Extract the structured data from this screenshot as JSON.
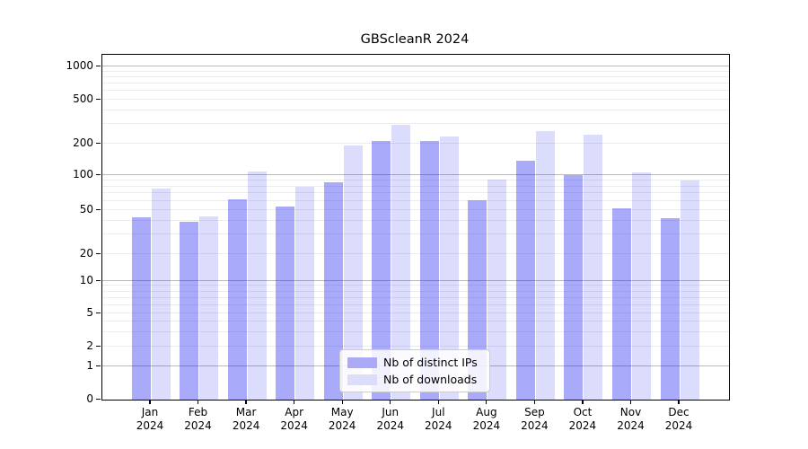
{
  "title": "GBScleanR 2024",
  "chart_data": {
    "type": "bar",
    "title": "GBScleanR 2024",
    "categories": [
      "Jan 2024",
      "Feb 2024",
      "Mar 2024",
      "Apr 2024",
      "May 2024",
      "Jun 2024",
      "Jul 2024",
      "Aug 2024",
      "Sep 2024",
      "Oct 2024",
      "Nov 2024",
      "Dec 2024"
    ],
    "x_tick_month_line": [
      "Jan",
      "Feb",
      "Mar",
      "Apr",
      "May",
      "Jun",
      "Jul",
      "Aug",
      "Sep",
      "Oct",
      "Nov",
      "Dec"
    ],
    "x_tick_year_line": "2024",
    "series": [
      {
        "name": "Nb of distinct IPs",
        "fill_rgba": "rgba(20,20,240,0.36)",
        "legend_hex": "#aaaaf9",
        "values": [
          43,
          39,
          62,
          54,
          87,
          212,
          213,
          61,
          138,
          100,
          52,
          42
        ]
      },
      {
        "name": "Nb of downloads",
        "fill_rgba": "rgba(20,20,240,0.15)",
        "legend_hex": "#dcdcfb",
        "values": [
          76,
          44,
          108,
          79,
          193,
          297,
          232,
          92,
          261,
          242,
          107,
          90
        ]
      }
    ],
    "yscale": "symlog",
    "y_ticks": [
      0,
      1,
      2,
      5,
      10,
      20,
      50,
      100,
      200,
      500,
      1000
    ],
    "ylim": [
      0,
      1280
    ],
    "grid": {
      "major_lines_at": [
        1,
        10,
        100,
        1000
      ],
      "minor_lines": "2-9 per decade"
    },
    "legend_position": "lower center inside plot",
    "colors": {
      "major_grid": "#b9b9b9",
      "minor_grid": "#ececec",
      "axis": "#000000"
    }
  }
}
